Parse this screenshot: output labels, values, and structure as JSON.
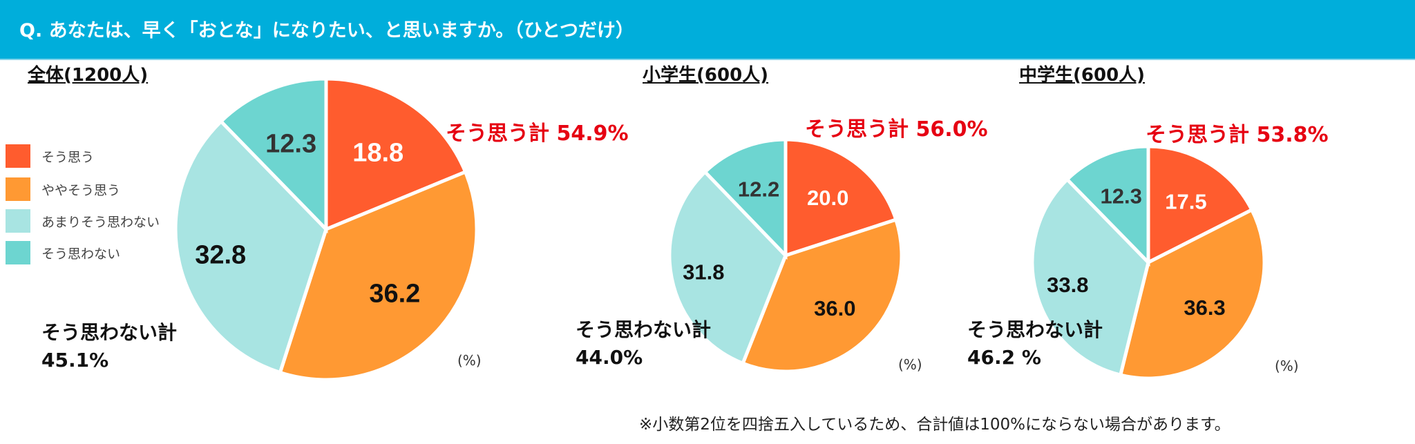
{
  "header": {
    "title": "Q. あなたは、早く「おとな」になりたい、と思いますか。（ひとつだけ）"
  },
  "legend": [
    {
      "label": "そう思う",
      "color": "#FF5C2E"
    },
    {
      "label": "ややそう思う",
      "color": "#FF9933"
    },
    {
      "label": "あまりそう思わない",
      "color": "#A8E4E2"
    },
    {
      "label": "そう思わない",
      "color": "#6DD5D0"
    }
  ],
  "chart_data": [
    {
      "type": "pie",
      "title": "全体(1200人)",
      "categories": [
        "そう思う",
        "ややそう思う",
        "あまりそう思わない",
        "そう思わない"
      ],
      "values": [
        18.8,
        36.2,
        32.8,
        12.3
      ],
      "yes_total": "そう思う計 54.9%",
      "no_total_label": "そう思わない計",
      "no_total_value": "45.1%",
      "unit": "(%)"
    },
    {
      "type": "pie",
      "title": "小学生(600人)",
      "categories": [
        "そう思う",
        "ややそう思う",
        "あまりそう思わない",
        "そう思わない"
      ],
      "values": [
        20.0,
        36.0,
        31.8,
        12.2
      ],
      "yes_total": "そう思う計 56.0%",
      "no_total_label": "そう思わない計",
      "no_total_value": "44.0%",
      "unit": "(%)"
    },
    {
      "type": "pie",
      "title": "中学生(600人)",
      "categories": [
        "そう思う",
        "ややそう思う",
        "あまりそう思わない",
        "そう思わない"
      ],
      "values": [
        17.5,
        36.3,
        33.8,
        12.3
      ],
      "yes_total": "そう思う計 53.8%",
      "no_total_label": "そう思わない計",
      "no_total_value": "46.2 %",
      "unit": "(%)"
    }
  ],
  "footnote": "※小数第2位を四捨五入しているため、合計値は100%にならない場合があります。"
}
